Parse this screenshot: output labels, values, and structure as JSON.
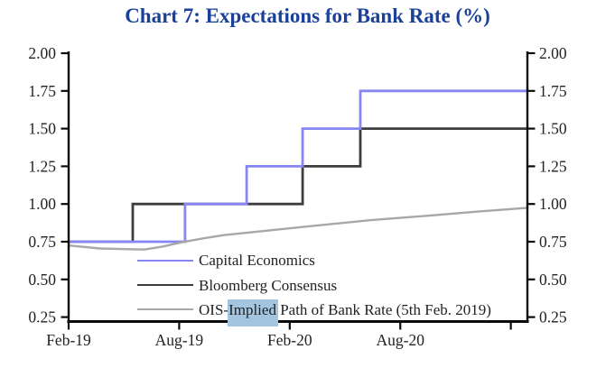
{
  "title": "Chart 7: Expectations for Bank Rate (%)",
  "colors": {
    "title": "#1a4098",
    "axis": "#0a0a0a",
    "tick_label": "#222222",
    "capital": "#8886f2",
    "bloomberg": "#3d3d3d",
    "ois": "#a8a8a8",
    "highlight": "#a4c5df"
  },
  "legend": {
    "items": [
      {
        "series": "capital",
        "prefix": "Capital Economics",
        "highlight": "",
        "suffix": ""
      },
      {
        "series": "bloomberg",
        "prefix": "Bloomberg Consensus",
        "highlight": "",
        "suffix": ""
      },
      {
        "series": "ois",
        "prefix": "OIS-",
        "highlight": "Implied",
        "suffix": " Path of Bank Rate (5th Feb. 2019)"
      }
    ]
  },
  "chart_data": {
    "type": "line",
    "title": "Chart 7: Expectations for Bank Rate (%)",
    "grid": false,
    "legend_position": "inside bottom-left",
    "x_unit": "months since Feb-2019",
    "x_domain": [
      0,
      24.9
    ],
    "x_ticks": [
      {
        "m": 0,
        "label": "Feb-19"
      },
      {
        "m": 6,
        "label": "Aug-19"
      },
      {
        "m": 12,
        "label": "Feb-20"
      },
      {
        "m": 18,
        "label": "Aug-20"
      },
      {
        "m": 24,
        "label": ""
      }
    ],
    "y_unit": "%",
    "y_domain": [
      0.25,
      2.0
    ],
    "y_ticks": [
      {
        "v": 2.0,
        "label": "2.00"
      },
      {
        "v": 1.75,
        "label": "1.75"
      },
      {
        "v": 1.5,
        "label": "1.50"
      },
      {
        "v": 1.25,
        "label": "1.25"
      },
      {
        "v": 1.0,
        "label": "1.00"
      },
      {
        "v": 0.75,
        "label": "0.75"
      },
      {
        "v": 0.5,
        "label": "0.50"
      },
      {
        "v": 0.25,
        "label": "0.25"
      }
    ],
    "y_axis_sides": "both",
    "series": [
      {
        "name": "Bloomberg Consensus",
        "color_key": "bloomberg",
        "style": "step",
        "step_dates": {
          "May-19": 1.0,
          "Feb-20": 1.25,
          "May-20": 1.5
        },
        "points": [
          [
            0,
            0.75
          ],
          [
            3.48,
            0.75
          ],
          [
            3.48,
            1.0
          ],
          [
            12.7,
            1.0
          ],
          [
            12.7,
            1.25
          ],
          [
            15.83,
            1.25
          ],
          [
            15.83,
            1.5
          ],
          [
            24.9,
            1.5
          ]
        ]
      },
      {
        "name": "Capital Economics",
        "color_key": "capital",
        "style": "step",
        "step_dates": {
          "Aug-19": 1.0,
          "Nov-19": 1.25,
          "Feb-20": 1.5,
          "May-20": 1.75
        },
        "points": [
          [
            0,
            0.75
          ],
          [
            6.32,
            0.75
          ],
          [
            6.32,
            1.0
          ],
          [
            9.66,
            1.0
          ],
          [
            9.66,
            1.25
          ],
          [
            12.7,
            1.25
          ],
          [
            12.7,
            1.5
          ],
          [
            15.83,
            1.5
          ],
          [
            15.83,
            1.75
          ],
          [
            24.9,
            1.75
          ]
        ]
      },
      {
        "name": "OIS-Implied Path of Bank Rate (5th Feb. 2019)",
        "color_key": "ois",
        "style": "smooth",
        "points": [
          [
            0,
            0.725
          ],
          [
            1.7,
            0.705
          ],
          [
            4.1,
            0.698
          ],
          [
            5.1,
            0.718
          ],
          [
            6.1,
            0.745
          ],
          [
            7.3,
            0.772
          ],
          [
            8.5,
            0.795
          ],
          [
            12.5,
            0.845
          ],
          [
            16.4,
            0.893
          ],
          [
            19.8,
            0.925
          ],
          [
            22.3,
            0.951
          ],
          [
            24.9,
            0.975
          ]
        ]
      }
    ]
  }
}
